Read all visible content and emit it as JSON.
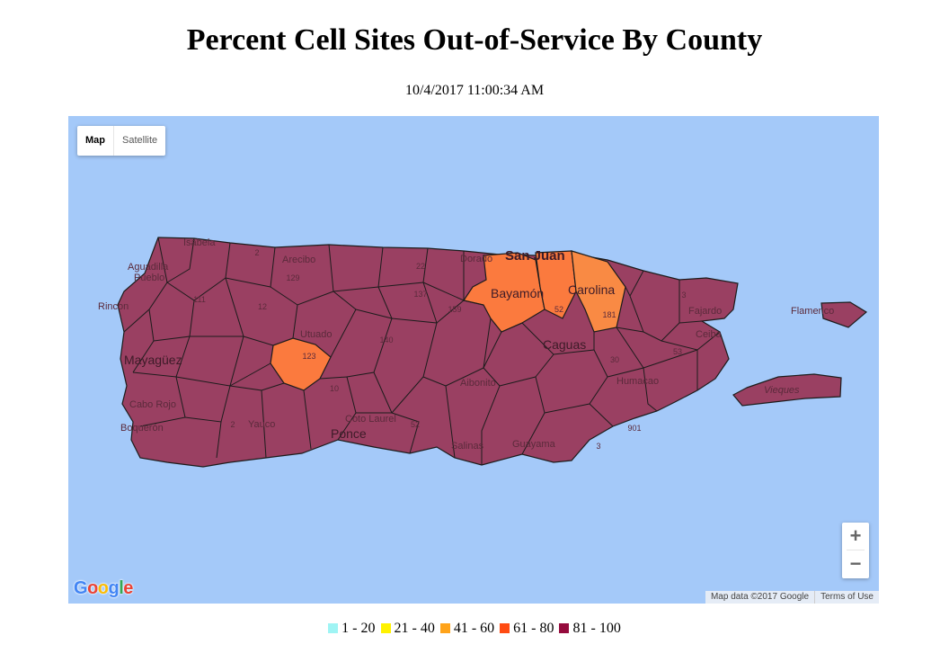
{
  "title": "Percent Cell Sites Out-of-Service By County",
  "timestamp": "10/4/2017 11:00:34 AM",
  "map": {
    "map_types": [
      "Map",
      "Satellite"
    ],
    "active_map_type": "Map",
    "zoom_in": "+",
    "zoom_out": "−",
    "attribution": "Map data ©2017 Google",
    "terms": "Terms of Use",
    "logo_letters": [
      "G",
      "o",
      "o",
      "g",
      "l",
      "e"
    ],
    "water_color": "#a4c9f9",
    "place_labels": {
      "isabela": "Isabela",
      "arecibo": "Arecibo",
      "aguadilla": "Aguadilla",
      "pueblo": "Pueblo",
      "rincon": "Rincon",
      "mayaguez": "Mayagüez",
      "cabo_rojo": "Cabo Rojo",
      "boqueron": "Boquerón",
      "yauco": "Yauco",
      "utuado": "Utuado",
      "coto_laurel": "Coto Laurel",
      "ponce": "Ponce",
      "salinas": "Salinas",
      "guayama": "Guayama",
      "aibonito": "Aibonito",
      "caguas": "Caguas",
      "humacao": "Humacao",
      "ceiba": "Ceiba",
      "fajardo": "Fajardo",
      "flamenco": "Flamenco",
      "vieques": "Vieques",
      "dorado": "Dorado",
      "san_juan": "San Juan",
      "bayamon": "Bayamón",
      "carolina": "Carolina"
    },
    "route_labels": {
      "r2": "2",
      "r129": "129",
      "r22": "22",
      "r111": "111",
      "r12": "12",
      "r137": "137",
      "r159": "159",
      "r52a": "52",
      "r30": "30",
      "r53": "53",
      "r3": "3",
      "r181": "181",
      "r140": "140",
      "r123": "123",
      "r10": "10",
      "r52b": "52",
      "r2b": "2",
      "r3b": "3",
      "r901": "901"
    }
  },
  "legend": [
    {
      "label": "1 - 20",
      "color": "#9ff4f4"
    },
    {
      "label": "21 - 40",
      "color": "#fff200"
    },
    {
      "label": "41 - 60",
      "color": "#ffa31a"
    },
    {
      "label": "61 - 80",
      "color": "#ff4b12"
    },
    {
      "label": "81 - 100",
      "color": "#950b3d"
    }
  ],
  "fill_colors": {
    "high": "#9a4062",
    "orange": "#fb7a3e",
    "light_orange": "#f98a44"
  }
}
